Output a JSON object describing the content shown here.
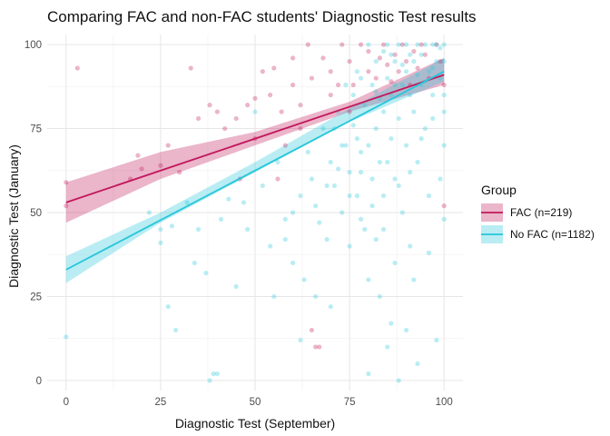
{
  "chart_data": {
    "type": "scatter",
    "title": "Comparing FAC and non-FAC students' Diagnostic Test results",
    "xlabel": "Diagnostic Test (September)",
    "ylabel": "Diagnostic Test (January)",
    "xlim": [
      -5,
      105
    ],
    "ylim": [
      -3,
      103
    ],
    "x_ticks": [
      0,
      25,
      50,
      75,
      100
    ],
    "y_ticks": [
      0,
      25,
      50,
      75,
      100
    ],
    "grid": true,
    "legend": {
      "title": "Group",
      "position": "right"
    },
    "series": [
      {
        "name": "FAC (n=219)",
        "color": "#c2185b",
        "fit": {
          "intercept": 53,
          "slope": 0.38
        },
        "ribbon": [
          [
            0,
            47,
            59
          ],
          [
            25,
            60,
            68
          ],
          [
            50,
            70,
            74
          ],
          [
            75,
            80,
            83
          ],
          [
            100,
            88,
            96
          ]
        ],
        "points": [
          [
            0,
            59
          ],
          [
            0,
            52
          ],
          [
            3,
            93
          ],
          [
            17,
            60
          ],
          [
            19,
            67
          ],
          [
            20,
            63
          ],
          [
            25,
            64
          ],
          [
            27,
            70
          ],
          [
            30,
            62
          ],
          [
            33,
            93
          ],
          [
            35,
            78
          ],
          [
            38,
            82
          ],
          [
            40,
            80
          ],
          [
            42,
            75
          ],
          [
            45,
            78
          ],
          [
            46,
            60
          ],
          [
            48,
            82
          ],
          [
            50,
            84
          ],
          [
            50,
            72
          ],
          [
            52,
            92
          ],
          [
            54,
            85
          ],
          [
            55,
            93
          ],
          [
            57,
            80
          ],
          [
            58,
            70
          ],
          [
            60,
            88
          ],
          [
            60,
            96
          ],
          [
            62,
            82
          ],
          [
            64,
            100
          ],
          [
            65,
            90
          ],
          [
            65,
            15
          ],
          [
            66,
            10
          ],
          [
            67,
            10
          ],
          [
            68,
            96
          ],
          [
            70,
            92
          ],
          [
            70,
            85
          ],
          [
            72,
            88
          ],
          [
            73,
            100
          ],
          [
            75,
            95
          ],
          [
            75,
            80
          ],
          [
            76,
            88
          ],
          [
            78,
            100
          ],
          [
            80,
            92
          ],
          [
            80,
            98
          ],
          [
            82,
            90
          ],
          [
            83,
            96
          ],
          [
            84,
            100
          ],
          [
            85,
            94
          ],
          [
            86,
            89
          ],
          [
            87,
            97
          ],
          [
            88,
            92
          ],
          [
            89,
            100
          ],
          [
            90,
            95
          ],
          [
            91,
            88
          ],
          [
            92,
            98
          ],
          [
            93,
            93
          ],
          [
            94,
            100
          ],
          [
            95,
            97
          ],
          [
            96,
            90
          ],
          [
            98,
            100
          ],
          [
            99,
            95
          ],
          [
            100,
            52
          ],
          [
            100,
            88
          ],
          [
            56,
            60
          ],
          [
            62,
            75
          ]
        ]
      },
      {
        "name": "No FAC (n=1182)",
        "color": "#26c6da",
        "fit": {
          "intercept": 33,
          "slope": 0.59
        },
        "ribbon": [
          [
            0,
            29,
            37
          ],
          [
            25,
            47,
            50
          ],
          [
            50,
            62,
            65
          ],
          [
            75,
            77,
            81
          ],
          [
            100,
            89,
            96
          ]
        ],
        "points": [
          [
            0,
            13
          ],
          [
            22,
            50
          ],
          [
            25,
            45
          ],
          [
            25,
            41
          ],
          [
            27,
            22
          ],
          [
            28,
            46
          ],
          [
            29,
            15
          ],
          [
            32,
            53
          ],
          [
            34,
            35
          ],
          [
            35,
            45
          ],
          [
            37,
            32
          ],
          [
            38,
            0
          ],
          [
            39,
            2
          ],
          [
            40,
            2
          ],
          [
            41,
            48
          ],
          [
            43,
            54
          ],
          [
            45,
            28
          ],
          [
            47,
            53
          ],
          [
            48,
            45
          ],
          [
            50,
            80
          ],
          [
            52,
            58
          ],
          [
            54,
            40
          ],
          [
            55,
            25
          ],
          [
            56,
            65
          ],
          [
            58,
            42
          ],
          [
            60,
            50
          ],
          [
            60,
            35
          ],
          [
            62,
            55
          ],
          [
            63,
            30
          ],
          [
            64,
            68
          ],
          [
            65,
            60
          ],
          [
            66,
            25
          ],
          [
            67,
            47
          ],
          [
            68,
            75
          ],
          [
            69,
            42
          ],
          [
            70,
            65
          ],
          [
            70,
            22
          ],
          [
            71,
            58
          ],
          [
            72,
            80
          ],
          [
            73,
            50
          ],
          [
            74,
            70
          ],
          [
            75,
            62
          ],
          [
            75,
            40
          ],
          [
            76,
            85
          ],
          [
            77,
            55
          ],
          [
            77,
            72
          ],
          [
            78,
            68
          ],
          [
            78,
            90
          ],
          [
            79,
            45
          ],
          [
            80,
            70
          ],
          [
            80,
            30
          ],
          [
            81,
            88
          ],
          [
            81,
            60
          ],
          [
            82,
            75
          ],
          [
            82,
            95
          ],
          [
            83,
            25
          ],
          [
            83,
            65
          ],
          [
            84,
            80
          ],
          [
            84,
            55
          ],
          [
            85,
            90
          ],
          [
            85,
            10
          ],
          [
            85,
            100
          ],
          [
            86,
            72
          ],
          [
            86,
            85
          ],
          [
            87,
            60
          ],
          [
            87,
            95
          ],
          [
            88,
            78
          ],
          [
            88,
            0
          ],
          [
            88,
            100
          ],
          [
            89,
            88
          ],
          [
            89,
            50
          ],
          [
            90,
            92
          ],
          [
            90,
            70
          ],
          [
            90,
            100
          ],
          [
            91,
            85
          ],
          [
            91,
            40
          ],
          [
            92,
            95
          ],
          [
            92,
            80
          ],
          [
            93,
            100
          ],
          [
            93,
            65
          ],
          [
            94,
            88
          ],
          [
            94,
            97
          ],
          [
            95,
            100
          ],
          [
            95,
            75
          ],
          [
            96,
            92
          ],
          [
            96,
            55
          ],
          [
            97,
            100
          ],
          [
            97,
            85
          ],
          [
            98,
            95
          ],
          [
            98,
            100
          ],
          [
            99,
            90
          ],
          [
            99,
            60
          ],
          [
            100,
            100
          ],
          [
            100,
            95
          ],
          [
            100,
            85
          ],
          [
            100,
            70
          ],
          [
            100,
            48
          ],
          [
            86,
            97
          ],
          [
            84,
            98
          ],
          [
            82,
            86
          ],
          [
            79,
            82
          ],
          [
            76,
            76
          ],
          [
            73,
            70
          ],
          [
            71,
            75
          ],
          [
            74,
            88
          ],
          [
            77,
            92
          ],
          [
            80,
            100
          ],
          [
            83,
            84
          ],
          [
            87,
            88
          ],
          [
            89,
            94
          ],
          [
            91,
            97
          ],
          [
            93,
            91
          ],
          [
            95,
            89
          ],
          [
            97,
            93
          ],
          [
            99,
            99
          ],
          [
            78,
            62
          ],
          [
            81,
            52
          ],
          [
            84,
            45
          ],
          [
            87,
            35
          ],
          [
            92,
            30
          ],
          [
            96,
            38
          ],
          [
            90,
            15
          ],
          [
            86,
            17
          ],
          [
            80,
            2
          ],
          [
            93,
            5
          ],
          [
            98,
            12
          ],
          [
            62,
            12
          ],
          [
            58,
            48
          ],
          [
            66,
            52
          ],
          [
            69,
            58
          ],
          [
            72,
            63
          ],
          [
            75,
            55
          ],
          [
            78,
            48
          ],
          [
            82,
            42
          ],
          [
            85,
            65
          ],
          [
            88,
            58
          ],
          [
            91,
            62
          ],
          [
            94,
            72
          ],
          [
            97,
            78
          ],
          [
            100,
            80
          ]
        ]
      }
    ]
  }
}
